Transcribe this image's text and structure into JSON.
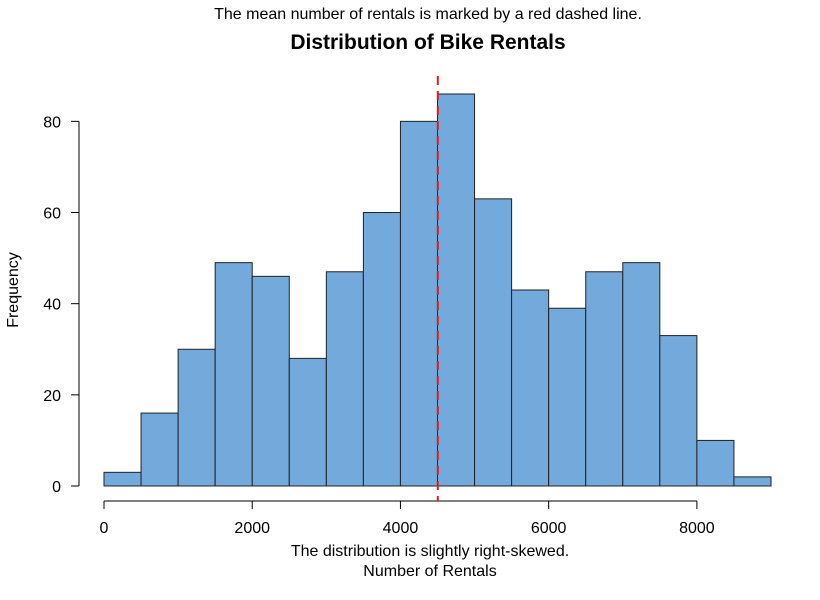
{
  "chart_data": {
    "type": "bar",
    "title": "Distribution of Bike Rentals",
    "subtitle": "The mean number of rentals is marked by a red dashed line.",
    "caption": "The distribution is slightly right-skewed.",
    "xlabel": "Number of Rentals",
    "ylabel": "Frequency",
    "bin_edges": [
      0,
      500,
      1000,
      1500,
      2000,
      2500,
      3000,
      3500,
      4000,
      4500,
      5000,
      5500,
      6000,
      6500,
      7000,
      7500,
      8000,
      8500,
      9000
    ],
    "values": [
      3,
      16,
      30,
      49,
      46,
      28,
      47,
      60,
      80,
      86,
      63,
      43,
      39,
      47,
      49,
      33,
      10,
      2
    ],
    "xlim": [
      0,
      9000
    ],
    "ylim": [
      0,
      86
    ],
    "x_ticks": [
      0,
      2000,
      4000,
      6000,
      8000
    ],
    "x_tick_labels": [
      "0",
      "2000",
      "4000",
      "6000",
      "8000"
    ],
    "y_ticks": [
      0,
      20,
      40,
      60,
      80
    ],
    "y_tick_labels": [
      "0",
      "20",
      "40",
      "60",
      "80"
    ],
    "mean": 4504,
    "grid": false,
    "bar_color": "#74a9dc",
    "bar_edge_color": "#222222",
    "mean_line_color": "#d62020"
  }
}
